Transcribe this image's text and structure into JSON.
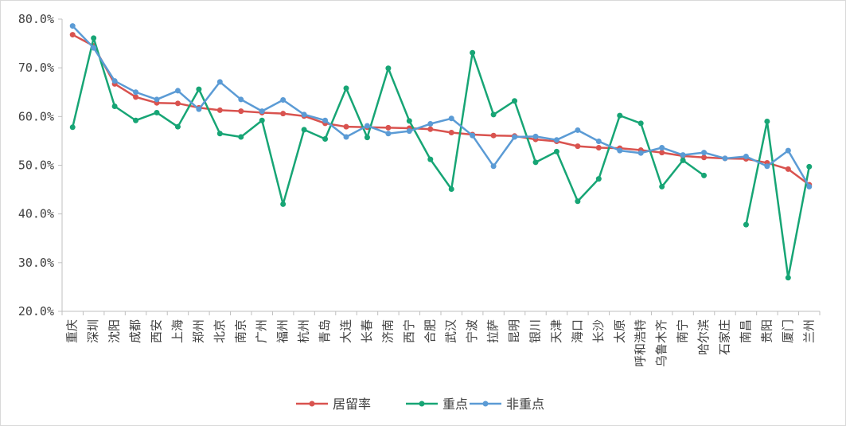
{
  "chart_data": {
    "type": "line",
    "title": "",
    "xlabel": "",
    "ylabel": "",
    "ylim": [
      20,
      80
    ],
    "y_ticks": [
      "20.0%",
      "30.0%",
      "40.0%",
      "50.0%",
      "60.0%",
      "70.0%",
      "80.0%"
    ],
    "y_tick_values": [
      20,
      30,
      40,
      50,
      60,
      70,
      80
    ],
    "grid": false,
    "legend_position": "bottom",
    "categories": [
      "重庆",
      "深圳",
      "沈阳",
      "成都",
      "西安",
      "上海",
      "郑州",
      "北京",
      "南京",
      "广州",
      "福州",
      "杭州",
      "青岛",
      "大连",
      "长春",
      "济南",
      "西宁",
      "合肥",
      "武汉",
      "宁波",
      "拉萨",
      "昆明",
      "银川",
      "天津",
      "海口",
      "长沙",
      "太原",
      "呼和浩特",
      "乌鲁木齐",
      "南宁",
      "哈尔滨",
      "石家庄",
      "南昌",
      "贵阳",
      "厦门",
      "兰州"
    ],
    "series": [
      {
        "name": "居留率",
        "color": "#d9534f",
        "values": [
          76.8,
          74.5,
          66.7,
          64.0,
          62.8,
          62.7,
          61.8,
          61.3,
          61.1,
          60.8,
          60.6,
          60.1,
          58.6,
          57.9,
          57.8,
          57.7,
          57.6,
          57.4,
          56.7,
          56.3,
          56.1,
          56.0,
          55.3,
          54.9,
          53.9,
          53.6,
          53.5,
          53.1,
          52.6,
          51.9,
          51.6,
          51.4,
          51.3,
          50.5,
          49.2,
          46.0
        ]
      },
      {
        "name": "重点",
        "color": "#17a575",
        "values": [
          57.8,
          76.1,
          62.1,
          59.2,
          60.8,
          57.9,
          65.6,
          56.5,
          55.8,
          59.2,
          42.0,
          57.3,
          55.4,
          65.8,
          55.7,
          69.9,
          59.1,
          51.2,
          45.1,
          73.1,
          60.4,
          63.2,
          50.6,
          52.8,
          42.6,
          47.2,
          60.2,
          58.6,
          45.6,
          51.0,
          47.9,
          null,
          37.8,
          59.0,
          26.9,
          49.7
        ]
      },
      {
        "name": "非重点",
        "color": "#5b9bd5",
        "values": [
          78.6,
          74.1,
          67.3,
          65.0,
          63.5,
          65.3,
          61.5,
          67.1,
          63.5,
          61.1,
          63.4,
          60.4,
          59.2,
          55.8,
          58.1,
          56.5,
          57.0,
          58.5,
          59.6,
          56.1,
          49.8,
          55.8,
          55.9,
          55.2,
          57.2,
          54.9,
          53.0,
          52.5,
          53.6,
          52.1,
          52.6,
          51.4,
          51.8,
          49.8,
          53.0,
          45.6
        ]
      }
    ]
  }
}
